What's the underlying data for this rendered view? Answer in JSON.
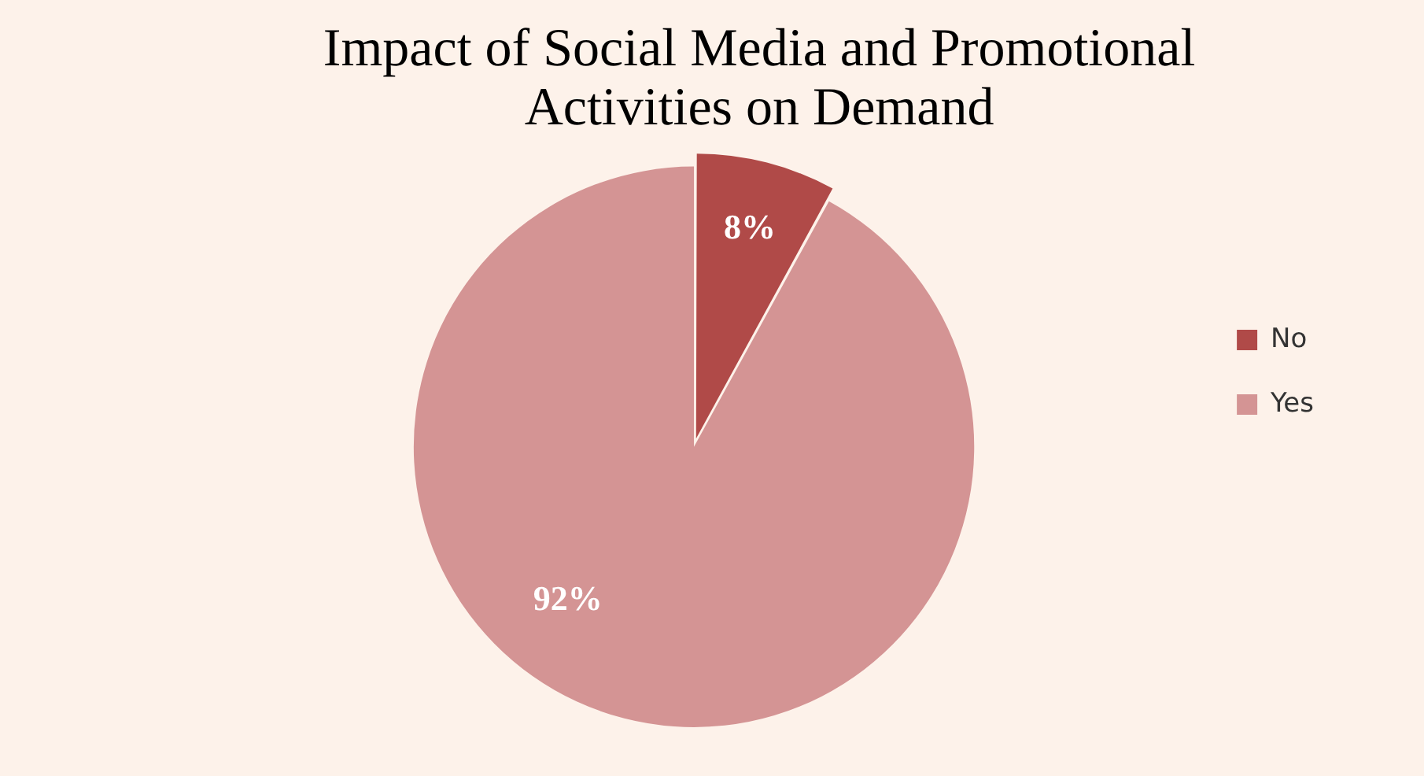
{
  "chart_data": {
    "type": "pie",
    "title": "Impact of Social Media and Promotional Activities on Demand",
    "categories": [
      "No",
      "Yes"
    ],
    "values": [
      8,
      92
    ],
    "colors": [
      "#b04a48",
      "#d49494"
    ],
    "legend": "right",
    "value_labels": [
      "8%",
      "92%"
    ]
  }
}
